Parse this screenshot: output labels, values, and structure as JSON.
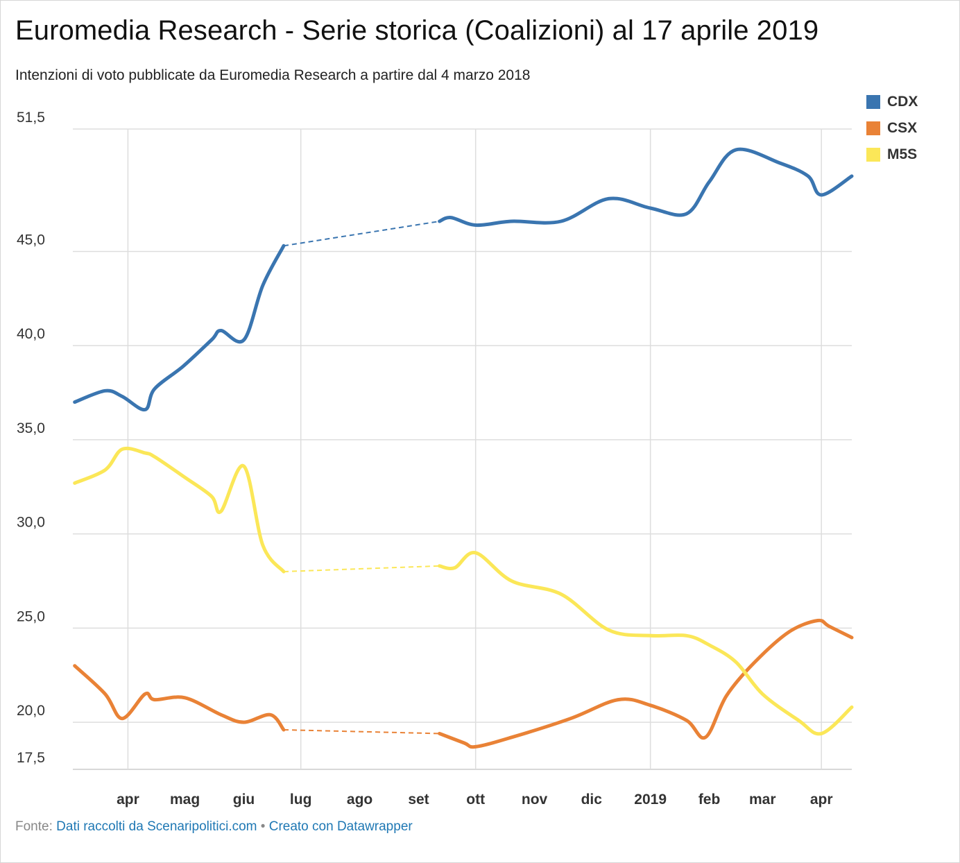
{
  "title": "Euromedia Research - Serie storica (Coalizioni) al 17 aprile 2019",
  "subtitle": "Intenzioni di voto pubblicate da Euromedia Research a partire dal 4 marzo 2018",
  "source": {
    "prefix": "Fonte:",
    "source_link": "Dati raccolti da Scenaripolitici.com",
    "separator": "•",
    "credit_link": "Creato con Datawrapper"
  },
  "chart_data": {
    "type": "line",
    "title": "Euromedia Research - Serie storica (Coalizioni) al 17 aprile 2019",
    "xlabel": "",
    "ylabel": "",
    "ylim": [
      17.5,
      51.5
    ],
    "xlim": [
      "2018-03-03",
      "2019-04-17"
    ],
    "yticks": [
      "51,5",
      "45,0",
      "40,0",
      "35,0",
      "30,0",
      "25,0",
      "20,0",
      "17,5"
    ],
    "ytick_values": [
      51.5,
      45.0,
      40.0,
      35.0,
      30.0,
      25.0,
      20.0,
      17.5
    ],
    "xticks": [
      {
        "label": "apr",
        "date": "2018-04-01",
        "grid": true
      },
      {
        "label": "mag",
        "date": "2018-05-01",
        "grid": false
      },
      {
        "label": "giu",
        "date": "2018-06-01",
        "grid": false
      },
      {
        "label": "lug",
        "date": "2018-07-01",
        "grid": true
      },
      {
        "label": "ago",
        "date": "2018-08-01",
        "grid": false
      },
      {
        "label": "set",
        "date": "2018-09-01",
        "grid": false
      },
      {
        "label": "ott",
        "date": "2018-10-01",
        "grid": true
      },
      {
        "label": "nov",
        "date": "2018-11-01",
        "grid": false
      },
      {
        "label": "dic",
        "date": "2018-12-01",
        "grid": false
      },
      {
        "label": "2019",
        "date": "2019-01-01",
        "grid": true
      },
      {
        "label": "feb",
        "date": "2019-02-01",
        "grid": false
      },
      {
        "label": "mar",
        "date": "2019-03-01",
        "grid": false
      },
      {
        "label": "apr",
        "date": "2019-04-01",
        "grid": true
      }
    ],
    "grid": true,
    "legend_position": "top-right",
    "gap": {
      "from": "2018-06-22",
      "to": "2018-09-12",
      "style": "dashed"
    },
    "series": [
      {
        "name": "CDX",
        "color": "#3a75b0",
        "points": [
          [
            "2018-03-04",
            37.0
          ],
          [
            "2018-03-20",
            37.6
          ],
          [
            "2018-03-29",
            37.3
          ],
          [
            "2018-04-10",
            36.6
          ],
          [
            "2018-04-15",
            37.7
          ],
          [
            "2018-04-30",
            38.9
          ],
          [
            "2018-05-15",
            40.3
          ],
          [
            "2018-05-20",
            40.8
          ],
          [
            "2018-06-01",
            40.3
          ],
          [
            "2018-06-11",
            43.2
          ],
          [
            "2018-06-22",
            45.3
          ],
          [
            "2018-09-12",
            46.6
          ],
          [
            "2018-09-18",
            46.8
          ],
          [
            "2018-10-01",
            46.4
          ],
          [
            "2018-10-20",
            46.6
          ],
          [
            "2018-11-15",
            46.6
          ],
          [
            "2018-12-10",
            47.8
          ],
          [
            "2019-01-01",
            47.3
          ],
          [
            "2019-01-20",
            47.0
          ],
          [
            "2019-02-01",
            48.7
          ],
          [
            "2019-02-15",
            50.4
          ],
          [
            "2019-03-10",
            49.7
          ],
          [
            "2019-03-25",
            49.0
          ],
          [
            "2019-04-01",
            48.0
          ],
          [
            "2019-04-17",
            49.0
          ]
        ]
      },
      {
        "name": "CSX",
        "color": "#e98236",
        "points": [
          [
            "2018-03-04",
            23.0
          ],
          [
            "2018-03-20",
            21.5
          ],
          [
            "2018-03-29",
            20.2
          ],
          [
            "2018-04-10",
            21.5
          ],
          [
            "2018-04-15",
            21.2
          ],
          [
            "2018-05-01",
            21.3
          ],
          [
            "2018-05-20",
            20.4
          ],
          [
            "2018-06-01",
            20.0
          ],
          [
            "2018-06-15",
            20.4
          ],
          [
            "2018-06-22",
            19.6
          ],
          [
            "2018-09-12",
            19.4
          ],
          [
            "2018-09-25",
            18.9
          ],
          [
            "2018-10-01",
            18.7
          ],
          [
            "2018-10-20",
            19.2
          ],
          [
            "2018-11-20",
            20.2
          ],
          [
            "2018-12-15",
            21.2
          ],
          [
            "2019-01-01",
            20.9
          ],
          [
            "2019-01-20",
            20.1
          ],
          [
            "2019-01-30",
            19.2
          ],
          [
            "2019-02-10",
            21.4
          ],
          [
            "2019-02-25",
            23.2
          ],
          [
            "2019-03-15",
            24.8
          ],
          [
            "2019-03-30",
            25.4
          ],
          [
            "2019-04-05",
            25.1
          ],
          [
            "2019-04-17",
            24.5
          ]
        ]
      },
      {
        "name": "M5S",
        "color": "#fbe758",
        "points": [
          [
            "2018-03-04",
            32.7
          ],
          [
            "2018-03-20",
            33.4
          ],
          [
            "2018-03-29",
            34.5
          ],
          [
            "2018-04-10",
            34.3
          ],
          [
            "2018-04-15",
            34.1
          ],
          [
            "2018-05-01",
            33.0
          ],
          [
            "2018-05-15",
            32.0
          ],
          [
            "2018-05-20",
            31.2
          ],
          [
            "2018-06-01",
            33.6
          ],
          [
            "2018-06-11",
            29.4
          ],
          [
            "2018-06-22",
            28.0
          ],
          [
            "2018-09-12",
            28.3
          ],
          [
            "2018-09-20",
            28.2
          ],
          [
            "2018-10-01",
            29.0
          ],
          [
            "2018-10-20",
            27.5
          ],
          [
            "2018-11-15",
            26.8
          ],
          [
            "2018-12-10",
            24.9
          ],
          [
            "2019-01-01",
            24.6
          ],
          [
            "2019-01-20",
            24.6
          ],
          [
            "2019-02-01",
            24.1
          ],
          [
            "2019-02-15",
            23.2
          ],
          [
            "2019-03-01",
            21.5
          ],
          [
            "2019-03-20",
            20.1
          ],
          [
            "2019-04-01",
            19.4
          ],
          [
            "2019-04-17",
            20.8
          ]
        ]
      }
    ]
  }
}
